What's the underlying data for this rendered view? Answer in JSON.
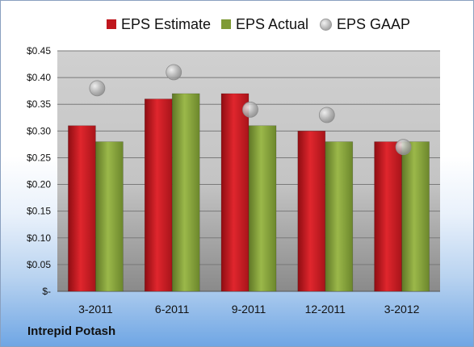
{
  "chart_data": {
    "type": "bar",
    "categories": [
      "3-2011",
      "6-2011",
      "9-2011",
      "12-2011",
      "3-2012"
    ],
    "series": [
      {
        "name": "EPS Estimate",
        "values": [
          0.31,
          0.36,
          0.37,
          0.3,
          0.28
        ],
        "color": "#c0171e"
      },
      {
        "name": "EPS Actual",
        "values": [
          0.28,
          0.37,
          0.31,
          0.28,
          0.28
        ],
        "color": "#7f9b36"
      },
      {
        "name": "EPS GAAP",
        "values": [
          0.38,
          0.41,
          0.34,
          0.33,
          0.27
        ],
        "color": "#b5b5b5",
        "style": "marker"
      }
    ],
    "ylim": [
      0,
      0.45
    ],
    "yticks": [
      0,
      0.05,
      0.1,
      0.15,
      0.2,
      0.25,
      0.3,
      0.35,
      0.4,
      0.45
    ],
    "ytick_labels": [
      "$-",
      "$0.05",
      "$0.10",
      "$0.15",
      "$0.20",
      "$0.25",
      "$0.30",
      "$0.35",
      "$0.40",
      "$0.45"
    ],
    "grid": true,
    "legend_position": "top"
  },
  "legend": {
    "estimate_label": "EPS Estimate",
    "actual_label": "EPS Actual",
    "gaap_label": "EPS GAAP"
  },
  "footer": {
    "company": "Intrepid Potash"
  }
}
